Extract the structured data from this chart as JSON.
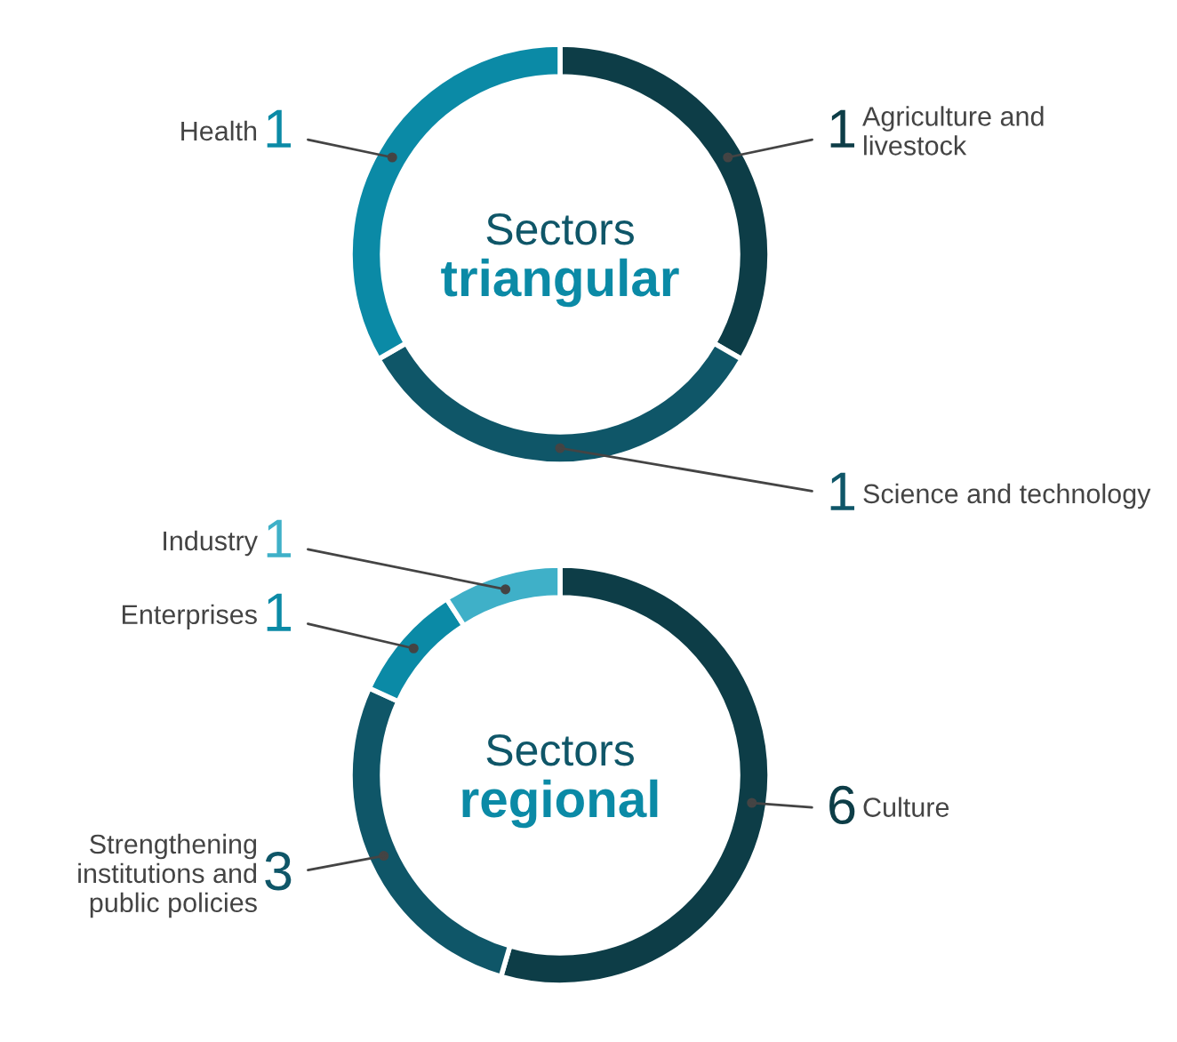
{
  "chart_data": [
    {
      "type": "donut",
      "title": "Sectors",
      "subtitle": "triangular",
      "categories": [
        "Agriculture and livestock",
        "Science and technology",
        "Health"
      ],
      "values": [
        1,
        1,
        1
      ],
      "colors": [
        "#0d3d47",
        "#0f5668",
        "#0b8aa6"
      ],
      "data_labels": true
    },
    {
      "type": "donut",
      "title": "Sectors",
      "subtitle": "regional",
      "categories": [
        "Culture",
        "Strengthening institutions and public policies",
        "Enterprises",
        "Industry"
      ],
      "values": [
        6,
        3,
        1,
        1
      ],
      "colors": [
        "#0d3d47",
        "#0f5668",
        "#0b8aa6",
        "#3fb0c8"
      ],
      "data_labels": true
    }
  ]
}
